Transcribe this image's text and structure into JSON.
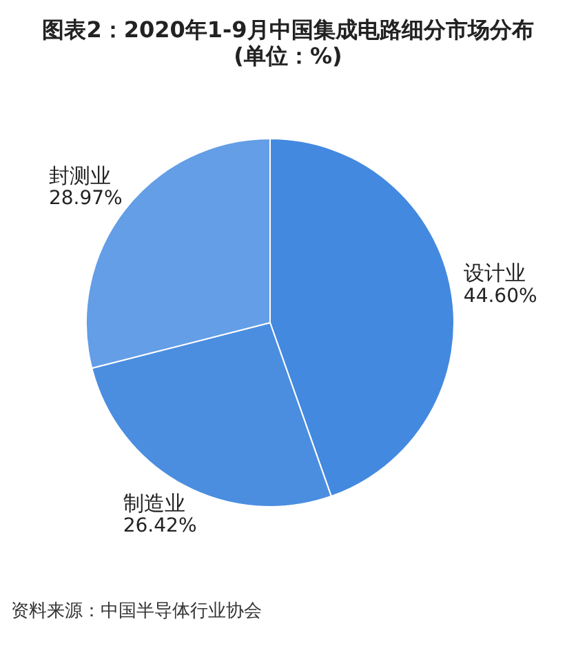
{
  "chart_data": {
    "type": "pie",
    "title": "图表2：2020年1-9月中国集成电路细分市场分布 (单位：%)",
    "categories": [
      "设计业",
      "制造业",
      "封测业"
    ],
    "values": [
      44.6,
      26.42,
      28.97
    ],
    "value_labels": [
      "44.60%",
      "26.42%",
      "28.97%"
    ],
    "colors": [
      "#4389df",
      "#4b8ee0",
      "#639ee6"
    ],
    "legend": false,
    "annotations": [
      "资料来源：中国半导体行业协会"
    ]
  }
}
